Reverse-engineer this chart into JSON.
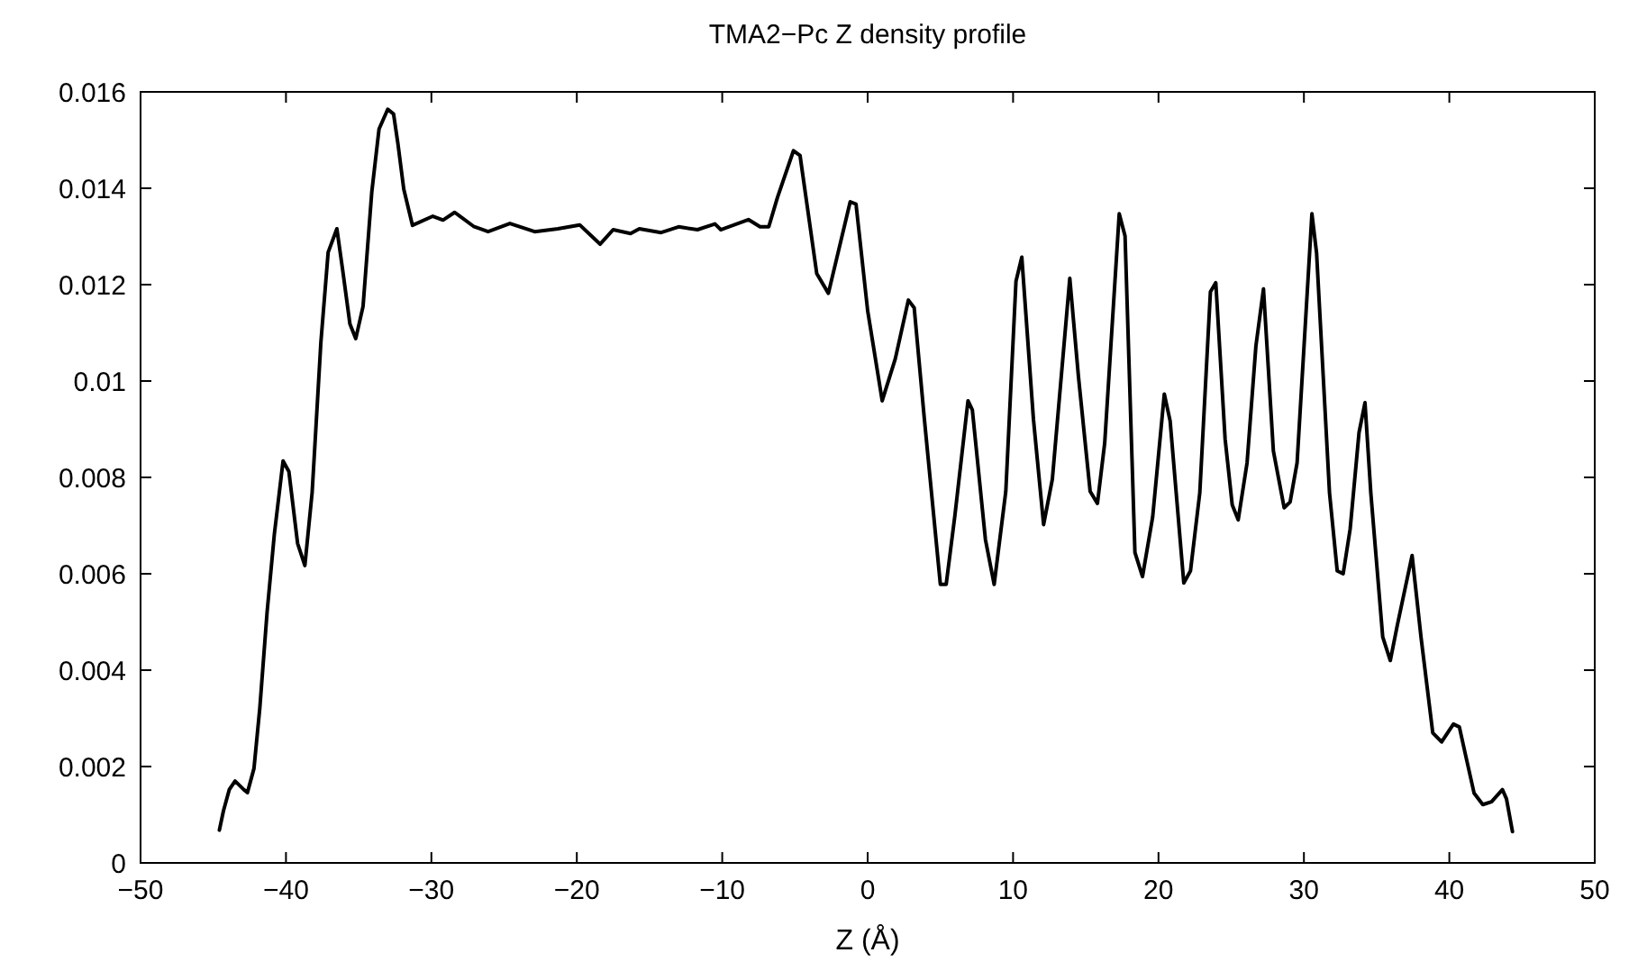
{
  "chart_data": {
    "type": "line",
    "title": "TMA2−Pc Z density profile",
    "xlabel": "Z (Å)",
    "xlim": [
      -50,
      50
    ],
    "xticks": [
      {
        "value": -50,
        "label": "−50"
      },
      {
        "value": -40,
        "label": "−40"
      },
      {
        "value": -30,
        "label": "−30"
      },
      {
        "value": -20,
        "label": "−20"
      },
      {
        "value": -10,
        "label": "−10"
      },
      0,
      10,
      20,
      30,
      40,
      50
    ],
    "ylim": [
      0,
      0.016
    ],
    "yticks": [
      0,
      0.002,
      0.004,
      0.006,
      0.008,
      0.01,
      0.012,
      0.014,
      0.016
    ],
    "grid": false,
    "marker": "none",
    "line_style": "solid",
    "series": [
      {
        "color": "#000000",
        "x": [
          -44.58,
          -44.3,
          -43.9,
          -43.5,
          -42.9,
          -42.65,
          -42.2,
          -41.8,
          -41.3,
          -40.8,
          -40.2,
          -39.8,
          -39.2,
          -38.7,
          -38.2,
          -37.6,
          -37.1,
          -36.5,
          -36.1,
          -35.6,
          -35.2,
          -34.7,
          -34.1,
          -33.6,
          -33.0,
          -32.6,
          -32.3,
          -31.9,
          -31.3,
          -29.9,
          -29.2,
          -28.4,
          -27.1,
          -26.1,
          -24.6,
          -22.9,
          -21.3,
          -19.8,
          -18.4,
          -17.5,
          -16.3,
          -15.7,
          -14.2,
          -13.0,
          -11.7,
          -10.5,
          -10.1,
          -8.2,
          -7.4,
          -6.8,
          -6.2,
          -5.1,
          -4.65,
          -3.5,
          -2.7,
          -1.2,
          -0.8,
          0.0,
          1.0,
          1.9,
          2.8,
          3.2,
          3.9,
          5.0,
          5.4,
          6.0,
          6.9,
          7.2,
          8.1,
          8.7,
          9.5,
          10.2,
          10.6,
          11.4,
          12.1,
          12.7,
          13.9,
          14.5,
          15.3,
          15.8,
          16.3,
          17.3,
          17.7,
          18.38,
          18.9,
          19.6,
          20.4,
          20.8,
          21.74,
          22.2,
          22.84,
          23.57,
          23.94,
          24.58,
          25.07,
          25.48,
          26.09,
          26.7,
          27.22,
          27.9,
          28.64,
          29.05,
          29.53,
          30.55,
          30.87,
          31.76,
          32.29,
          32.7,
          33.18,
          33.79,
          34.2,
          34.6,
          35.42,
          35.94,
          36.43,
          37.44,
          38.05,
          38.86,
          39.47,
          40.28,
          40.69,
          41.1,
          41.7,
          42.3,
          42.9,
          43.65,
          43.93,
          44.34
        ],
        "values": [
          0.00068,
          0.00108,
          0.00152,
          0.0017,
          0.00152,
          0.00146,
          0.00196,
          0.00321,
          0.0052,
          0.00682,
          0.00834,
          0.00812,
          0.00663,
          0.00617,
          0.00769,
          0.0108,
          0.01267,
          0.01316,
          0.0123,
          0.01118,
          0.01088,
          0.01155,
          0.01392,
          0.01523,
          0.01564,
          0.01554,
          0.01492,
          0.01398,
          0.01323,
          0.01342,
          0.01334,
          0.0135,
          0.01321,
          0.0131,
          0.01327,
          0.0131,
          0.01316,
          0.01324,
          0.01284,
          0.01314,
          0.01306,
          0.01316,
          0.01308,
          0.0132,
          0.01314,
          0.01326,
          0.01314,
          0.01335,
          0.0132,
          0.0132,
          0.01381,
          0.01478,
          0.01468,
          0.01223,
          0.01182,
          0.01372,
          0.01367,
          0.01146,
          0.00959,
          0.01046,
          0.01168,
          0.01152,
          0.00921,
          0.00578,
          0.00578,
          0.00721,
          0.00959,
          0.0094,
          0.00671,
          0.00578,
          0.00771,
          0.01207,
          0.01257,
          0.00921,
          0.00702,
          0.00796,
          0.01213,
          0.01008,
          0.00771,
          0.00746,
          0.00871,
          0.01347,
          0.01301,
          0.00644,
          0.00594,
          0.00718,
          0.00973,
          0.00917,
          0.00581,
          0.00606,
          0.00768,
          0.01185,
          0.01204,
          0.0088,
          0.00743,
          0.00712,
          0.0083,
          0.01073,
          0.01191,
          0.00855,
          0.00737,
          0.00749,
          0.0083,
          0.01347,
          0.01266,
          0.00768,
          0.00606,
          0.006,
          0.00693,
          0.00893,
          0.00955,
          0.00768,
          0.00469,
          0.0042,
          0.00494,
          0.00638,
          0.00469,
          0.0027,
          0.00251,
          0.00288,
          0.00282,
          0.00226,
          0.00145,
          0.00121,
          0.00127,
          0.00152,
          0.00133,
          0.00065
        ]
      }
    ]
  }
}
